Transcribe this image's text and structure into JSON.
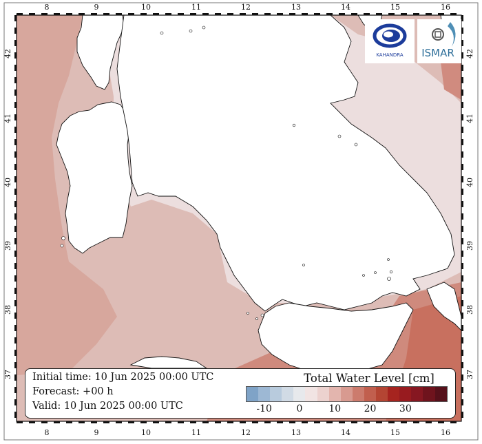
{
  "map": {
    "lon_ticks": [
      "8",
      "9",
      "10",
      "11",
      "12",
      "13",
      "14",
      "15",
      "16"
    ],
    "lat_ticks": [
      "42",
      "41",
      "40",
      "39",
      "38",
      "37"
    ]
  },
  "info": {
    "initial": "Initial time: 10 Jun 2025 00:00 UTC",
    "forecast": "Forecast: +00 h",
    "valid": "Valid: 10 Jun 2025 00:00 UTC"
  },
  "colorbar": {
    "title": "Total Water Level [cm]",
    "labels": [
      "-10",
      "0",
      "10",
      "20",
      "30"
    ],
    "colors": [
      "#7fa3c7",
      "#9db8d4",
      "#b8cbdd",
      "#d1dbe5",
      "#e7e9ec",
      "#f1e4e3",
      "#ecd2cf",
      "#e3b5ae",
      "#d89a90",
      "#cc7b6d",
      "#c15f4e",
      "#b44533",
      "#a6241f",
      "#981b1f",
      "#861721",
      "#6f131d",
      "#56101a"
    ],
    "field_colors": {
      "light": "#ecdede",
      "mid": "#ddbcb6",
      "darker": "#d49c91",
      "strong": "#c8705f"
    }
  },
  "logos": {
    "left_text": "KAHANDRA",
    "right_text": "ISMAR"
  }
}
